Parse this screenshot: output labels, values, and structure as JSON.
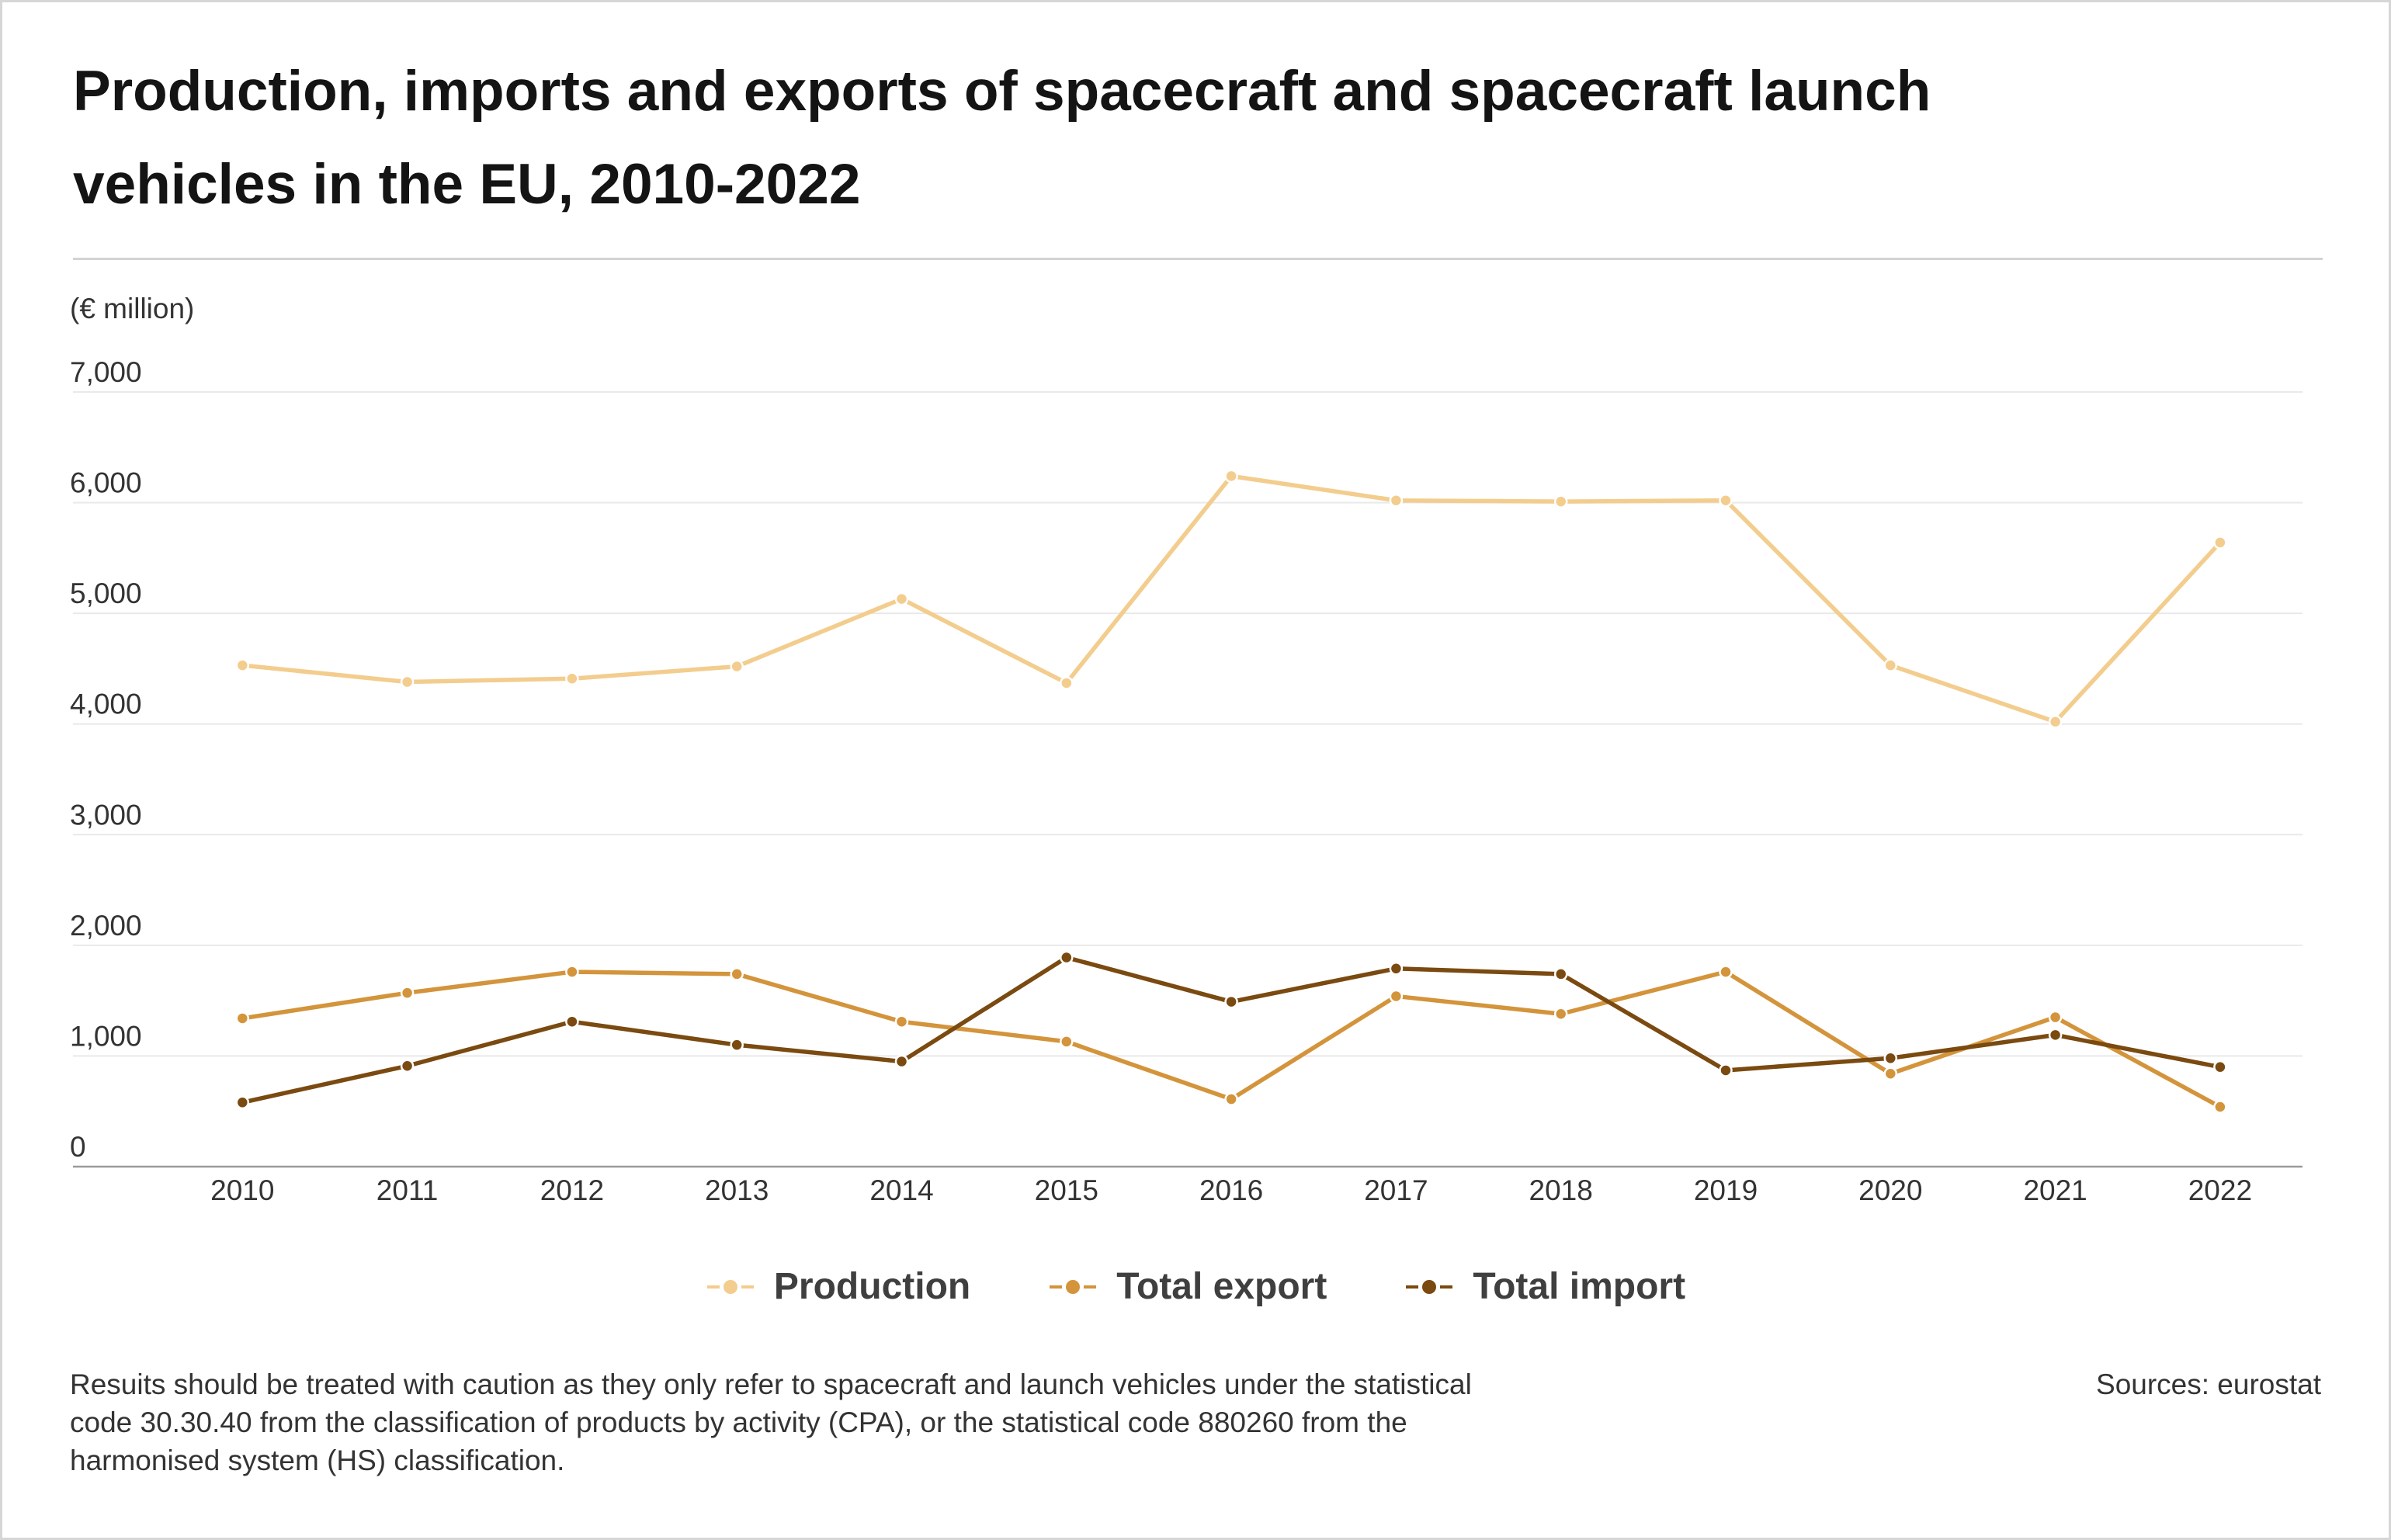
{
  "chart_data": {
    "type": "line",
    "title": "Production, imports and exports of spacecraft and spacecraft launch vehicles in the EU, 2010-2022",
    "ylabel": "(€ million)",
    "x": [
      "2010",
      "2011",
      "2012",
      "2013",
      "2014",
      "2015",
      "2016",
      "2017",
      "2018",
      "2019",
      "2020",
      "2021",
      "2022"
    ],
    "ylim": [
      0,
      7000
    ],
    "y_ticks": [
      {
        "value": 0,
        "label": "0"
      },
      {
        "value": 1000,
        "label": "1,000"
      },
      {
        "value": 2000,
        "label": "2,000"
      },
      {
        "value": 3000,
        "label": "3,000"
      },
      {
        "value": 4000,
        "label": "4,000"
      },
      {
        "value": 5000,
        "label": "5,000"
      },
      {
        "value": 6000,
        "label": "6,000"
      },
      {
        "value": 7000,
        "label": "7,000"
      }
    ],
    "grid": true,
    "legend_position": "bottom-center",
    "series": [
      {
        "name": "Production",
        "color": "#F3CD8E",
        "values": [
          4530,
          4380,
          4410,
          4520,
          5130,
          4370,
          6240,
          6020,
          6010,
          6020,
          4530,
          4020,
          5640
        ]
      },
      {
        "name": "Total export",
        "color": "#D3943B",
        "values": [
          1340,
          1570,
          1760,
          1740,
          1310,
          1130,
          610,
          1540,
          1380,
          1760,
          840,
          1350,
          540
        ]
      },
      {
        "name": "Total import",
        "color": "#7A4A10",
        "values": [
          580,
          910,
          1310,
          1100,
          950,
          1890,
          1490,
          1790,
          1740,
          870,
          980,
          1190,
          900
        ]
      }
    ]
  },
  "note": {
    "lines": [
      "Resuits should be treated with caution as they only refer to spacecraft and launch vehicles under the statistical",
      "code 30.30.40 from the classification of products by activity (CPA), or the statistical code 880260 from the",
      "harmonised system (HS) classification."
    ]
  },
  "source": "Sources: eurostat"
}
